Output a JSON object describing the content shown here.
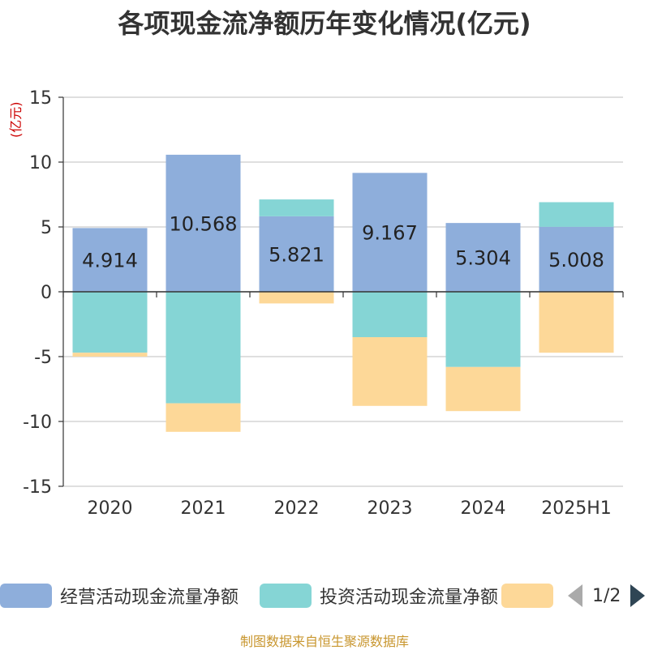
{
  "title": "各项现金流净额历年变化情况(亿元)",
  "unit_label": "(亿元)",
  "source": "制图数据来自恒生聚源数据库",
  "legend": {
    "items": [
      {
        "label": "经营活动现金流量净额",
        "color": "#8eaedb"
      },
      {
        "label": "投资活动现金流量净额",
        "color": "#85d5d5"
      },
      {
        "label": "",
        "color": "#fdd898"
      }
    ],
    "pager": "1/2"
  },
  "chart_data": {
    "type": "bar",
    "stacked": true,
    "categories": [
      "2020",
      "2021",
      "2022",
      "2023",
      "2024",
      "2025H1"
    ],
    "ylim": [
      -15,
      15
    ],
    "yticks": [
      15,
      10,
      5,
      0,
      -5,
      -10,
      -15
    ],
    "grid": true,
    "legend_position": "bottom",
    "series": [
      {
        "name": "经营活动现金流量净额",
        "color": "#8eaedb",
        "values": [
          4.914,
          10.568,
          5.821,
          9.167,
          5.304,
          5.008
        ],
        "labels": [
          "4.914",
          "10.568",
          "5.821",
          "9.167",
          "5.304",
          "5.008"
        ]
      },
      {
        "name": "投资活动现金流量净额",
        "color": "#85d5d5",
        "values": [
          -4.7,
          -8.6,
          1.3,
          -3.5,
          -5.8,
          1.9
        ]
      },
      {
        "name": "",
        "color": "#fdd898",
        "values": [
          -0.3,
          -2.2,
          -0.9,
          -5.3,
          -3.4,
          -4.7
        ]
      }
    ]
  }
}
